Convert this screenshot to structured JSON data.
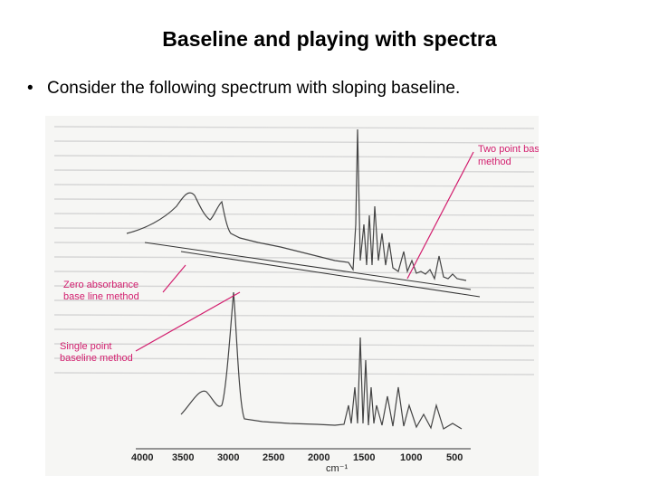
{
  "slide": {
    "title": "Baseline and playing with spectra",
    "bullet": "Consider the following spectrum with sloping baseline."
  },
  "figure": {
    "annotations": {
      "two_point_line1": "Two point base line",
      "two_point_line2": "method",
      "zero_line1": "Zero absorbance",
      "zero_line2": "base line method",
      "single_line1": "Single point",
      "single_line2": "baseline method"
    },
    "axis_ticks": [
      "4000",
      "3500",
      "3000",
      "2500",
      "2000",
      "1500",
      "1000",
      "500"
    ],
    "axis_unit": "cm⁻¹",
    "annotation_color": "#d21e6e"
  }
}
